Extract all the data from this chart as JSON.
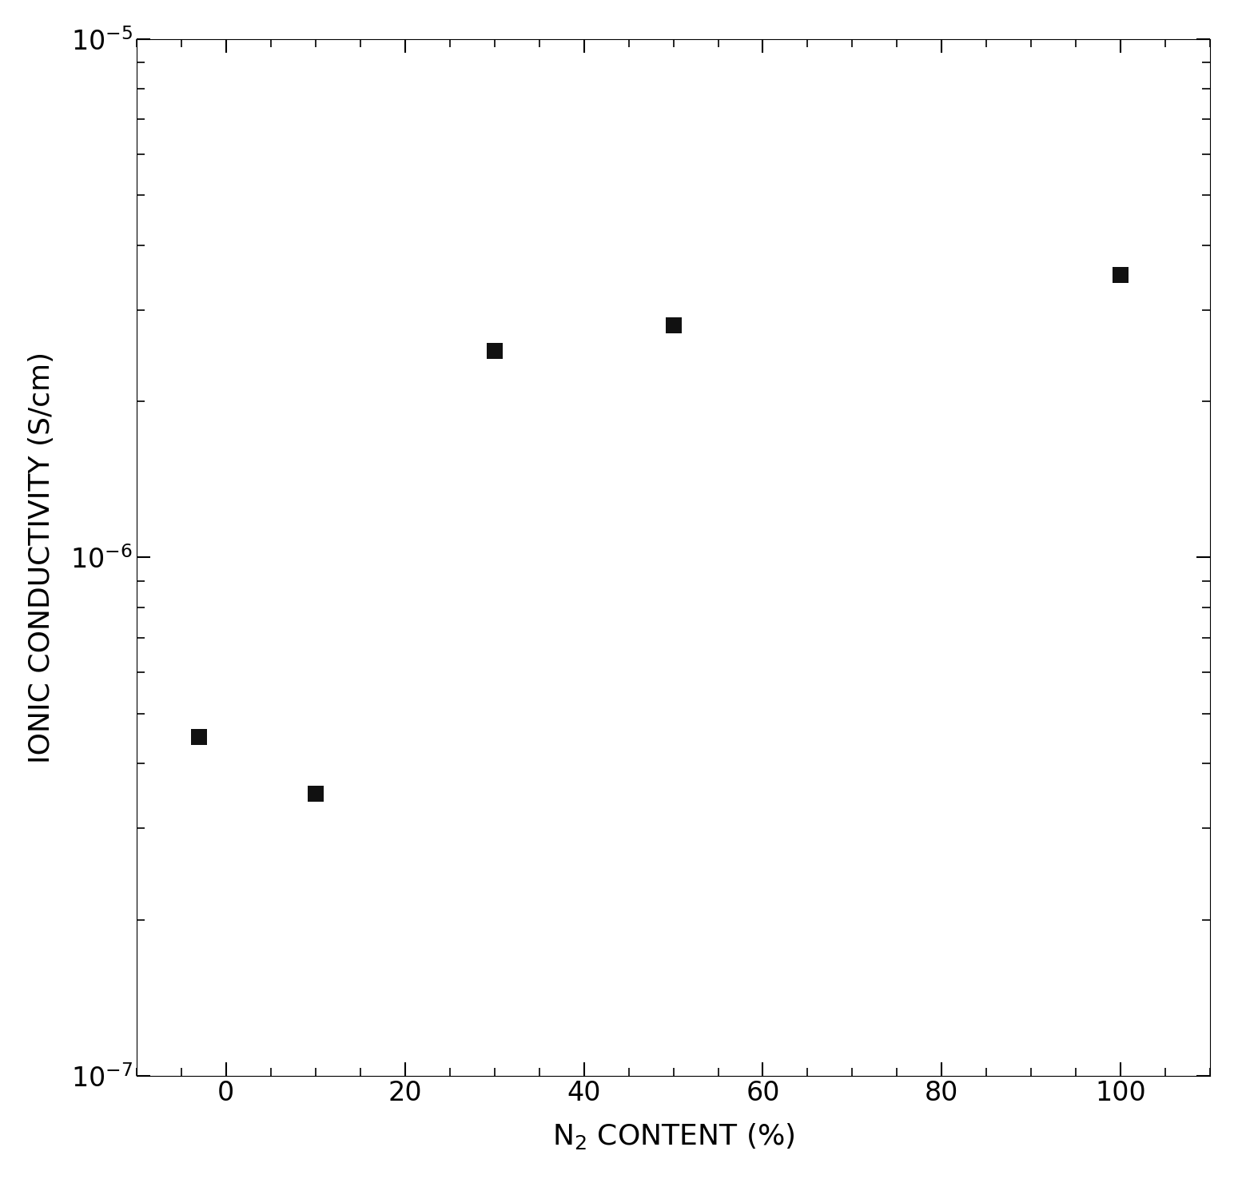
{
  "x_values": [
    -3,
    10,
    30,
    50,
    100
  ],
  "y_values": [
    4.5e-07,
    3.5e-07,
    2.5e-06,
    2.8e-06,
    3.5e-06
  ],
  "xlabel": "N$_2$ CONTENT (%)",
  "ylabel": "IONIC CONDUCTIVITY (S/cm)",
  "xlim": [
    -10,
    110
  ],
  "ylim": [
    1e-07,
    1e-05
  ],
  "xticks": [
    0,
    20,
    40,
    60,
    80,
    100
  ],
  "background_color": "#ffffff",
  "marker_color": "#111111",
  "marker_size": 220,
  "xlabel_fontsize": 26,
  "ylabel_fontsize": 26,
  "tick_fontsize": 24,
  "figwidth": 15.49,
  "figheight": 14.75,
  "dpi": 100
}
